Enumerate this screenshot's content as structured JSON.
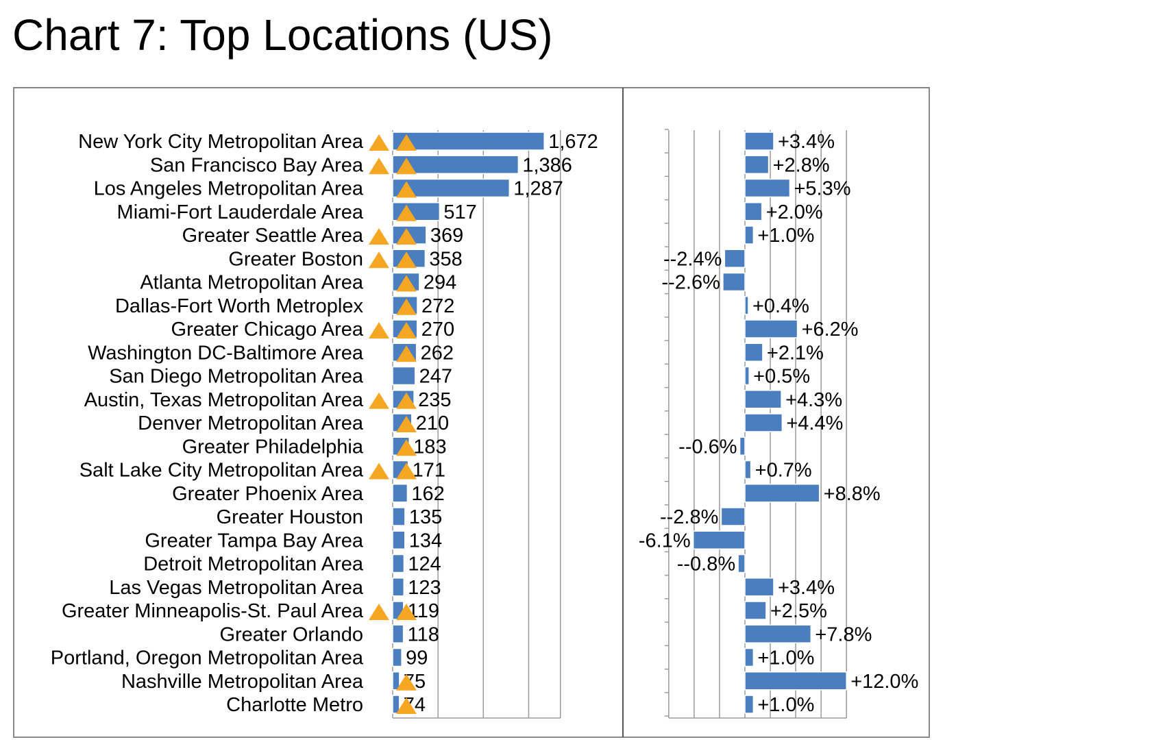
{
  "title": "Chart 7: Top Locations (US)",
  "colors": {
    "bar": "#4a7ebf",
    "marker": "#f5a623",
    "grid": "#999999",
    "frame": "#888888"
  },
  "chart_data": [
    {
      "type": "bar",
      "orientation": "horizontal",
      "categories": [
        "New York City Metropolitan Area",
        "San Francisco Bay Area",
        "Los Angeles Metropolitan Area",
        "Miami-Fort Lauderdale Area",
        "Greater Seattle Area",
        "Greater Boston",
        "Atlanta Metropolitan Area",
        "Dallas-Fort Worth Metroplex",
        "Greater Chicago Area",
        "Washington DC-Baltimore Area",
        "San Diego Metropolitan Area",
        "Austin, Texas Metropolitan Area",
        "Denver Metropolitan Area",
        "Greater Philadelphia",
        "Salt Lake City Metropolitan Area",
        "Greater Phoenix Area",
        "Greater Houston",
        "Greater Tampa Bay Area",
        "Detroit Metropolitan Area",
        "Las Vegas Metropolitan Area",
        "Greater Minneapolis-St. Paul Area",
        "Greater Orlando",
        "Portland, Oregon Metropolitan Area",
        "Nashville Metropolitan Area",
        "Charlotte Metro"
      ],
      "values": [
        1672,
        1386,
        1287,
        517,
        369,
        358,
        294,
        272,
        270,
        262,
        247,
        235,
        210,
        183,
        171,
        162,
        135,
        134,
        124,
        123,
        119,
        118,
        99,
        75,
        74
      ],
      "value_labels": [
        "1,672",
        "1,386",
        "1,287",
        "517",
        "369",
        "358",
        "294",
        "272",
        "270",
        "262",
        "247",
        "235",
        "210",
        "183",
        "171",
        "162",
        "135",
        "134",
        "124",
        "123",
        "119",
        "118",
        "99",
        "75",
        "74"
      ],
      "category_markers": [
        true,
        true,
        false,
        false,
        true,
        true,
        false,
        false,
        true,
        false,
        false,
        true,
        false,
        false,
        true,
        false,
        false,
        false,
        false,
        false,
        true,
        false,
        false,
        false,
        false
      ],
      "bar_markers": [
        true,
        true,
        true,
        true,
        true,
        true,
        true,
        true,
        true,
        true,
        false,
        true,
        true,
        true,
        true,
        false,
        false,
        false,
        false,
        false,
        true,
        false,
        false,
        true,
        true
      ],
      "xlim": [
        0,
        1850
      ],
      "grid": true,
      "title": "",
      "xlabel": "",
      "ylabel": ""
    },
    {
      "type": "bar",
      "orientation": "horizontal",
      "values": [
        3.4,
        2.8,
        5.3,
        2.0,
        1.0,
        -2.4,
        -2.6,
        0.4,
        6.2,
        2.1,
        0.5,
        4.3,
        4.4,
        -0.6,
        0.7,
        8.8,
        -2.8,
        -6.1,
        -0.8,
        3.4,
        2.5,
        7.8,
        1.0,
        12.0,
        1.0
      ],
      "value_labels": [
        "+3.4%",
        "+2.8%",
        "+5.3%",
        "+2.0%",
        "+1.0%",
        "--2.4%",
        "--2.6%",
        "+0.4%",
        "+6.2%",
        "+2.1%",
        "+0.5%",
        "+4.3%",
        "+4.4%",
        "--0.6%",
        "+0.7%",
        "+8.8%",
        "--2.8%",
        "-6.1%",
        "--0.8%",
        "+3.4%",
        "+2.5%",
        "+7.8%",
        "+1.0%",
        "+12.0%",
        "+1.0%"
      ],
      "xlim": [
        -9,
        12
      ],
      "grid": true,
      "title": "",
      "xlabel": "",
      "ylabel": ""
    }
  ]
}
